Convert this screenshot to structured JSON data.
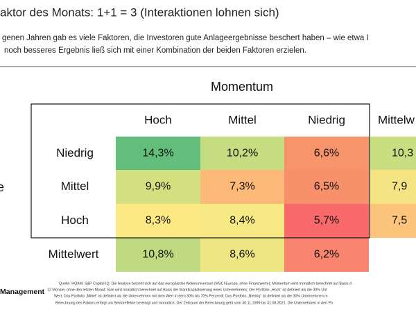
{
  "title": "aktor des Monats: 1+1 = 3 (Interaktionen lohnen sich)",
  "subtitle": [
    "genen Jahren gab es viele Faktoren, die Investoren gute Anlageergebnisse beschert haben – wie etwa I",
    "noch besseres Ergebnis ließ sich mit einer Kombination der beiden Faktoren erzielen."
  ],
  "table": {
    "column_axis": "Momentum",
    "row_axis": "e",
    "columns": [
      "Hoch",
      "Mittel",
      "Niedrig",
      "Mittelw"
    ],
    "rows": [
      {
        "label": "Niedrig",
        "cells": [
          "14,3%",
          "10,2%",
          "6,6%",
          "10,3"
        ],
        "colors": [
          "#63be7b",
          "#c6dc80",
          "#f8946c",
          "#c9dd81"
        ]
      },
      {
        "label": "Mittel",
        "cells": [
          "9,9%",
          "7,3%",
          "6,5%",
          "7,9"
        ],
        "colors": [
          "#d3e07f",
          "#fcb977",
          "#f8906b",
          "#f5e483"
        ]
      },
      {
        "label": "Hoch",
        "cells": [
          "8,3%",
          "8,4%",
          "5,7%",
          "7,5"
        ],
        "colors": [
          "#fde983",
          "#f6e883",
          "#f8696b",
          "#fdc47b"
        ]
      },
      {
        "label": "Mittelwert",
        "cells": [
          "10,8%",
          "8,6%",
          "6,2%"
        ],
        "colors": [
          "#bfda80",
          "#eee583",
          "#f98570"
        ]
      }
    ]
  },
  "footer": {
    "brand": "Management",
    "source": [
      "Quelle: HQAM, S&P Capital IQ. Die Analyse bezieht sich auf das europäische Aktienuniversum (MSCI Europa, ohne Finanzwerte); Momentum wird monatlich berechnet auf Basis d",
      "12 Monate, ohne den letzten Monat; Size wird monatlich berechnet auf Basis der Marktkapitalisierung eines Unternehmens; Der Portfolio „Hoch“ ist definiert als die 30% Unt",
      "Wert; Das Portfolio „Mittel“ ist definiert als die Unternehmen mit dem Wert in dem 30% bis 70% Perzentil; Das Portfolio „Niedrig“ ist definiert als die 30% Unternehmen m",
      "Berechnung des Faktors erfolgt um Sektoreffekte bereinigt und monatlich; Der Zeitraum der Berechnung geht vom 30.11.1999 bis 31.08.2021. Die Unternehmen in den Po"
    ]
  }
}
